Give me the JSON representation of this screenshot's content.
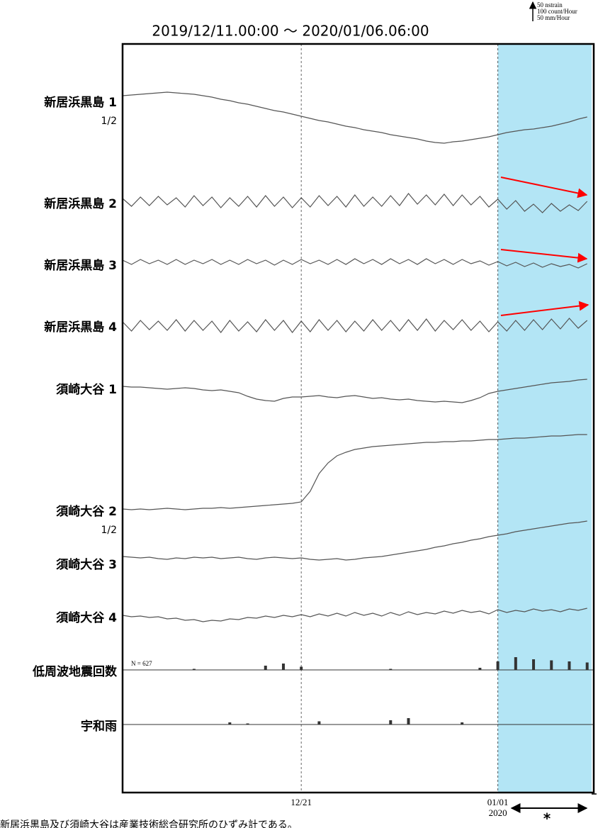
{
  "title": "2019/12/11.00:00 ～ 2020/01/06.06:00",
  "scale_labels": [
    "50 nstrain",
    "100 count/Hour",
    "50 mm/Hour"
  ],
  "footnote": "新居浜黒島及び須崎大谷は産業技術総合研究所のひずみ計である。",
  "asterisk": "*",
  "chart_data": [
    {
      "type": "line",
      "xlim": [
        0,
        26.25
      ],
      "xticks": [
        {
          "value": 10,
          "label": "12/21"
        },
        {
          "value": 21,
          "label": "01/01"
        }
      ],
      "year_label": "2020",
      "highlight": [
        21,
        26.25
      ],
      "highlight_color": "#b3e5f5",
      "color": "#555",
      "x": [
        0,
        0.5,
        1,
        1.5,
        2,
        2.5,
        3,
        3.5,
        4,
        4.5,
        5,
        5.5,
        6,
        6.5,
        7,
        7.5,
        8,
        8.5,
        9,
        9.5,
        10,
        10.5,
        11,
        11.5,
        12,
        12.5,
        13,
        13.5,
        14,
        14.5,
        15,
        15.5,
        16,
        16.5,
        17,
        17.5,
        18,
        18.5,
        19,
        19.5,
        20,
        20.5,
        21,
        21.5,
        22,
        22.5,
        23,
        23.5,
        24,
        24.5,
        25,
        25.5,
        26
      ],
      "series": [
        {
          "name": "新居浜黒島 1",
          "scale_label": "1/2",
          "values": [
            0,
            2,
            4,
            6,
            8,
            10,
            8,
            6,
            4,
            0,
            -4,
            -10,
            -14,
            -20,
            -24,
            -30,
            -36,
            -42,
            -46,
            -52,
            -58,
            -64,
            -70,
            -74,
            -80,
            -86,
            -90,
            -96,
            -100,
            -104,
            -110,
            -114,
            -118,
            -122,
            -128,
            -132,
            -134,
            -130,
            -128,
            -124,
            -120,
            -116,
            -110,
            -104,
            -100,
            -96,
            -94,
            -90,
            -86,
            -80,
            -74,
            -66,
            -60
          ]
        },
        {
          "name": "新居浜黒島 2",
          "values": [
            10,
            -12,
            14,
            -10,
            16,
            -8,
            12,
            -14,
            18,
            -10,
            14,
            -16,
            12,
            -12,
            16,
            -14,
            18,
            -12,
            14,
            -16,
            12,
            -14,
            18,
            -10,
            16,
            -14,
            20,
            -12,
            14,
            -12,
            18,
            -10,
            24,
            -6,
            20,
            -8,
            22,
            -10,
            20,
            -8,
            16,
            -14,
            8,
            -20,
            4,
            -26,
            -6,
            -30,
            -4,
            -26,
            -8,
            -24,
            2
          ]
        },
        {
          "name": "新居浜黒島 3",
          "values": [
            6,
            -6,
            8,
            -4,
            6,
            -6,
            8,
            -6,
            6,
            -4,
            8,
            -6,
            6,
            -6,
            8,
            -4,
            6,
            -8,
            6,
            -6,
            8,
            -4,
            6,
            -6,
            8,
            -6,
            10,
            -4,
            8,
            -6,
            10,
            -4,
            8,
            -6,
            10,
            -4,
            8,
            -6,
            8,
            -4,
            4,
            -8,
            2,
            -10,
            0,
            -12,
            -2,
            -14,
            -4,
            -12,
            -6,
            -16,
            -4
          ]
        },
        {
          "name": "新居浜黒島 4",
          "values": [
            12,
            -14,
            16,
            -10,
            14,
            -12,
            18,
            -14,
            16,
            -12,
            14,
            -18,
            16,
            -14,
            12,
            -16,
            18,
            -12,
            16,
            -18,
            14,
            -16,
            18,
            -12,
            16,
            -16,
            14,
            -14,
            18,
            -12,
            16,
            -14,
            18,
            -12,
            20,
            -14,
            16,
            -10,
            18,
            -12,
            14,
            -16,
            12,
            -14,
            16,
            -12,
            18,
            -10,
            20,
            -8,
            22,
            -6,
            16
          ]
        },
        {
          "name": "須崎大谷 1",
          "values": [
            0,
            -2,
            -2,
            -4,
            -6,
            -8,
            -6,
            -4,
            -6,
            -10,
            -12,
            -10,
            -14,
            -18,
            -28,
            -36,
            -40,
            -42,
            -34,
            -30,
            -30,
            -28,
            -26,
            -30,
            -32,
            -28,
            -26,
            -30,
            -34,
            -32,
            -36,
            -38,
            -36,
            -40,
            -42,
            -44,
            -42,
            -44,
            -46,
            -40,
            -32,
            -20,
            -14,
            -10,
            -6,
            -2,
            2,
            6,
            10,
            12,
            14,
            18,
            20
          ]
        },
        {
          "name": "須崎大谷 2",
          "scale_label": "1/2",
          "values": [
            0,
            -2,
            0,
            -2,
            0,
            2,
            0,
            -2,
            0,
            2,
            2,
            4,
            2,
            4,
            6,
            8,
            10,
            12,
            14,
            16,
            20,
            50,
            100,
            130,
            150,
            160,
            168,
            172,
            176,
            178,
            180,
            182,
            184,
            186,
            188,
            188,
            190,
            190,
            192,
            192,
            194,
            196,
            196,
            198,
            200,
            200,
            202,
            204,
            206,
            206,
            208,
            210,
            210
          ]
        },
        {
          "name": "須崎大谷 3",
          "values": [
            0,
            -2,
            -4,
            -2,
            -6,
            -8,
            -4,
            -6,
            -2,
            -4,
            -2,
            -6,
            -4,
            -2,
            -6,
            -8,
            -4,
            -2,
            -4,
            -6,
            -4,
            -8,
            -10,
            -8,
            -6,
            -10,
            -8,
            -4,
            -2,
            0,
            4,
            8,
            12,
            16,
            20,
            26,
            30,
            36,
            40,
            46,
            50,
            56,
            60,
            64,
            70,
            74,
            78,
            82,
            86,
            90,
            94,
            96,
            100
          ]
        },
        {
          "name": "須崎大谷 4",
          "values": [
            0,
            -4,
            -2,
            -6,
            -4,
            -10,
            -8,
            -14,
            -12,
            -18,
            -14,
            -16,
            -10,
            -12,
            -6,
            -8,
            -2,
            -6,
            0,
            -4,
            2,
            -4,
            4,
            -2,
            6,
            -2,
            8,
            0,
            6,
            -2,
            8,
            0,
            10,
            2,
            8,
            4,
            12,
            6,
            14,
            8,
            12,
            4,
            16,
            8,
            14,
            10,
            18,
            12,
            16,
            10,
            18,
            14,
            20
          ]
        }
      ]
    },
    {
      "type": "bar",
      "name": "低周波地震回数",
      "annotation": "N =   627",
      "color": "#333",
      "x": [
        0,
        1,
        2,
        3,
        4,
        5,
        6,
        7,
        8,
        9,
        10,
        11,
        12,
        13,
        14,
        15,
        16,
        17,
        18,
        19,
        20,
        21,
        22,
        23,
        24,
        25,
        26
      ],
      "values": [
        0,
        0,
        0,
        0,
        1,
        0,
        0,
        0,
        4,
        6,
        3,
        0,
        0,
        0,
        0,
        1,
        0,
        0,
        0,
        0,
        2,
        8,
        12,
        10,
        9,
        8,
        7
      ]
    },
    {
      "type": "bar",
      "name": "宇和雨",
      "color": "#333",
      "x": [
        0,
        1,
        2,
        3,
        4,
        5,
        6,
        7,
        8,
        9,
        10,
        11,
        12,
        13,
        14,
        15,
        16,
        17,
        18,
        19,
        20,
        21,
        22,
        23,
        24,
        25,
        26
      ],
      "values": [
        0,
        0,
        0,
        0,
        0,
        0,
        2,
        1,
        0,
        0,
        0,
        3,
        0,
        0,
        0,
        4,
        6,
        0,
        0,
        2,
        0,
        0,
        0,
        0,
        0,
        0,
        0
      ]
    }
  ]
}
